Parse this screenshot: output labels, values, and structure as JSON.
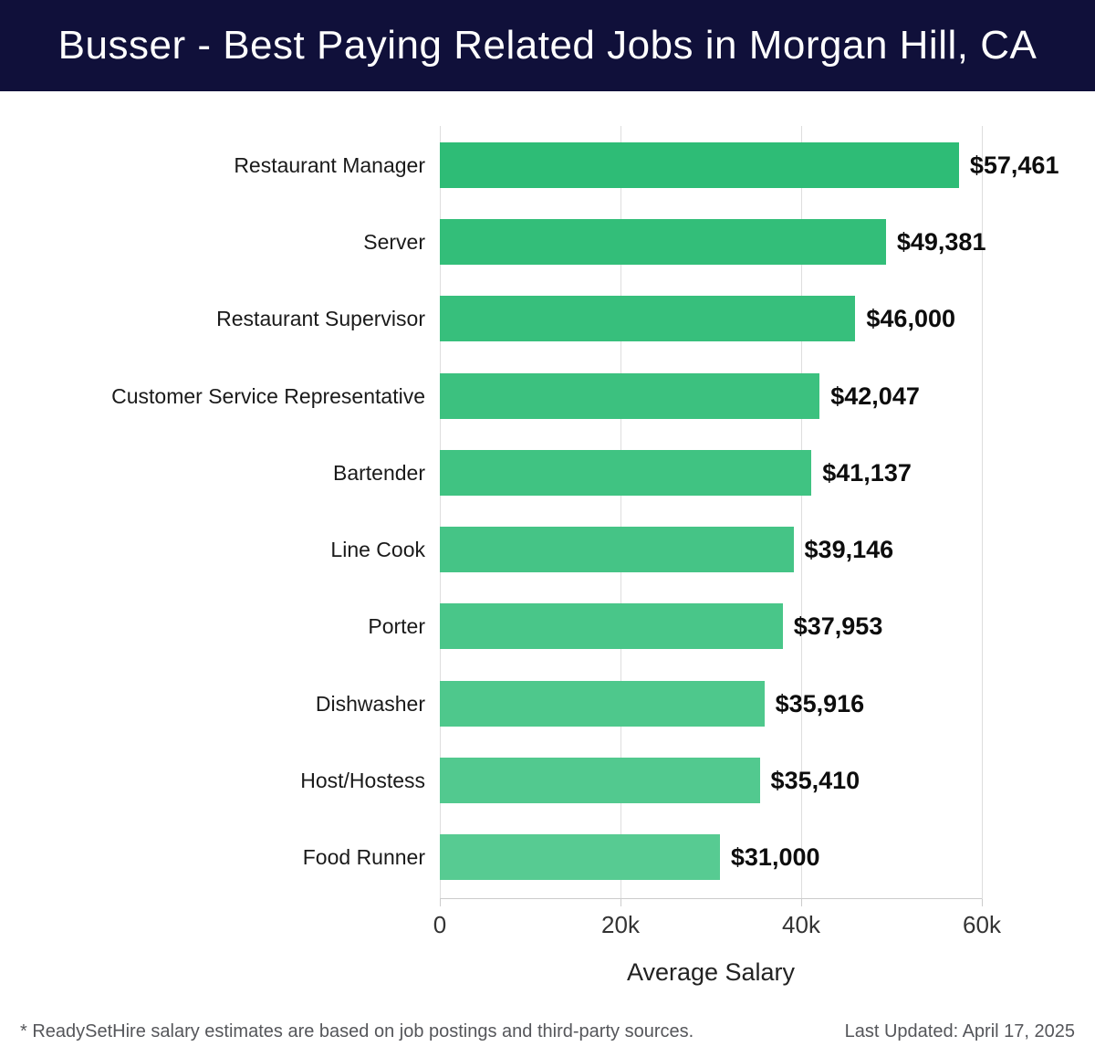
{
  "header": {
    "title": "Busser - Best Paying Related Jobs in Morgan Hill, CA"
  },
  "chart_data": {
    "type": "bar",
    "orientation": "horizontal",
    "title": "Busser - Best Paying Related Jobs in Morgan Hill, CA",
    "categories": [
      "Restaurant Manager",
      "Server",
      "Restaurant Supervisor",
      "Customer Service Representative",
      "Bartender",
      "Line Cook",
      "Porter",
      "Dishwasher",
      "Host/Hostess",
      "Food Runner"
    ],
    "values": [
      57461,
      49381,
      46000,
      42047,
      41137,
      39146,
      37953,
      35916,
      35410,
      31000
    ],
    "value_labels": [
      "$57,461",
      "$49,381",
      "$46,000",
      "$42,047",
      "$41,137",
      "$39,146",
      "$37,953",
      "$35,916",
      "$35,410",
      "$31,000"
    ],
    "xlabel": "Average Salary",
    "xlim": [
      0,
      60000
    ],
    "x_ticks": [
      {
        "value": 0,
        "label": "0"
      },
      {
        "value": 20000,
        "label": "20k"
      },
      {
        "value": 40000,
        "label": "40k"
      },
      {
        "value": 60000,
        "label": "60k"
      }
    ],
    "grid": true,
    "legend": "none"
  },
  "colors": {
    "header_bg": "#10103a",
    "header_text": "#ffffff",
    "bar_color_start": "#2ebc76",
    "bar_color_end": "#57cb92",
    "gridline": "#dedede",
    "axis_line": "#cccccc",
    "tick_text": "#333333",
    "category_text": "#1a1a1a",
    "value_text": "#0d0d0d",
    "axis_title_text": "#222222",
    "footer_text": "#55565a"
  },
  "footer": {
    "disclaimer": "* ReadySetHire salary estimates are based on job postings and third-party sources.",
    "last_updated": "Last Updated: April 17, 2025"
  }
}
